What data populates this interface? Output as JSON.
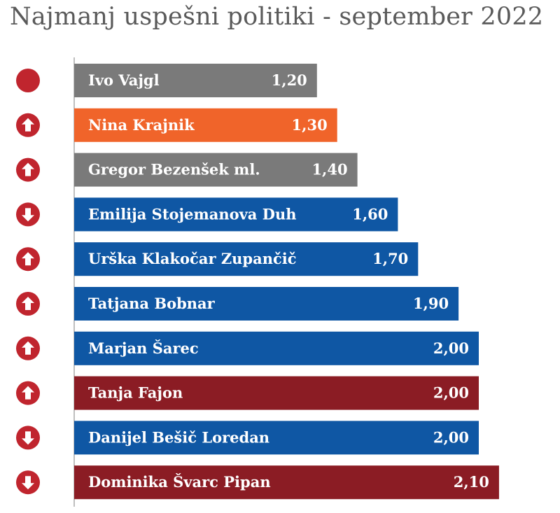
{
  "title": "Najmanj uspešni politiki - september 2022",
  "colors": {
    "grey": "#7a7a7a",
    "orange": "#f0642a",
    "blue": "#0f57a4",
    "darkred": "#8b1c24",
    "marker": "#c0252e",
    "axis": "#bfbfbf"
  },
  "chart_data": {
    "type": "bar",
    "orientation": "horizontal",
    "title": "Najmanj uspešni politiki - september 2022",
    "categories": [
      "Ivo Vajgl",
      "Nina Krajnik",
      "Gregor Bezenšek ml.",
      "Emilija Stojemanova Duh",
      "Urška Klakočar Zupančič",
      "Tatjana Bobnar",
      "Marjan Šarec",
      "Tanja Fajon",
      "Danijel Bešič Loredan",
      "Dominika Švarc Pipan"
    ],
    "values": [
      1.2,
      1.3,
      1.4,
      1.6,
      1.7,
      1.9,
      2.0,
      2.0,
      2.0,
      2.1
    ],
    "value_labels": [
      "1,20",
      "1,30",
      "1,40",
      "1,60",
      "1,70",
      "1,90",
      "2,00",
      "2,00",
      "2,00",
      "2,10"
    ],
    "bar_colors": [
      "grey",
      "orange",
      "grey",
      "blue",
      "blue",
      "blue",
      "blue",
      "darkred",
      "blue",
      "darkred"
    ],
    "trend_icons": [
      "dot-icon",
      "arrow-up-icon",
      "arrow-up-icon",
      "arrow-down-icon",
      "arrow-up-icon",
      "arrow-up-icon",
      "arrow-up-icon",
      "arrow-up-icon",
      "arrow-down-icon",
      "arrow-down-icon"
    ]
  }
}
